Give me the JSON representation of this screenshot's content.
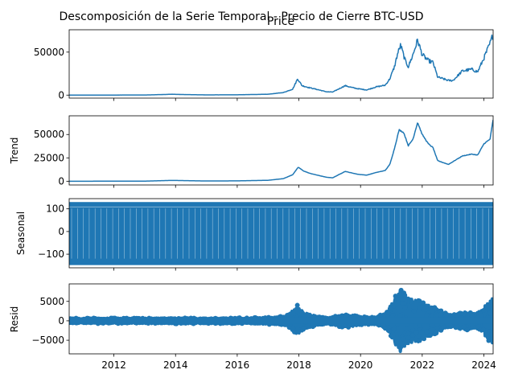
{
  "figure": {
    "suptitle": "Descomposición de la Serie Temporal - Precio de Cierre BTC-USD",
    "line_color": "#1f77b4",
    "x_ticks": [
      "2012",
      "2014",
      "2016",
      "2018",
      "2020",
      "2022",
      "2024"
    ]
  },
  "chart_data": [
    {
      "type": "line",
      "title": "Price",
      "ylabel": "",
      "xlim": [
        2010.55,
        2024.3
      ],
      "ylim": [
        -3500,
        76000
      ],
      "y_ticks": [
        0,
        50000
      ],
      "y_tick_labels": [
        "0",
        "50000"
      ],
      "x": [
        2010.55,
        2013.0,
        2013.9,
        2014.2,
        2015.0,
        2016.0,
        2017.0,
        2017.5,
        2017.8,
        2017.96,
        2018.1,
        2018.3,
        2018.6,
        2018.9,
        2019.1,
        2019.5,
        2019.7,
        2019.9,
        2020.2,
        2020.5,
        2020.8,
        2020.95,
        2021.1,
        2021.2,
        2021.3,
        2021.45,
        2021.55,
        2021.7,
        2021.85,
        2022.0,
        2022.2,
        2022.35,
        2022.5,
        2022.85,
        2023.0,
        2023.3,
        2023.6,
        2023.8,
        2024.0,
        2024.2,
        2024.3
      ],
      "y": [
        0,
        100,
        1000,
        700,
        250,
        400,
        1000,
        3000,
        7000,
        19000,
        11000,
        9000,
        6500,
        3800,
        3600,
        11000,
        9000,
        7500,
        6000,
        9500,
        11500,
        19000,
        33000,
        48000,
        58000,
        40000,
        33000,
        47000,
        64000,
        47000,
        40000,
        38000,
        21000,
        17000,
        17000,
        28000,
        30000,
        27000,
        43000,
        60000,
        71000
      ]
    },
    {
      "type": "line",
      "title": "",
      "ylabel": "Trend",
      "xlim": [
        2010.55,
        2024.3
      ],
      "ylim": [
        -4000,
        70000
      ],
      "y_ticks": [
        0,
        25000,
        50000
      ],
      "y_tick_labels": [
        "0",
        "25000",
        "50000"
      ],
      "x": [
        2010.55,
        2013.0,
        2013.9,
        2014.2,
        2015.0,
        2016.0,
        2017.0,
        2017.5,
        2017.8,
        2017.98,
        2018.15,
        2018.35,
        2018.6,
        2018.9,
        2019.1,
        2019.5,
        2019.7,
        2019.9,
        2020.2,
        2020.5,
        2020.8,
        2020.95,
        2021.1,
        2021.25,
        2021.4,
        2021.55,
        2021.7,
        2021.85,
        2022.0,
        2022.2,
        2022.35,
        2022.5,
        2022.85,
        2023.0,
        2023.3,
        2023.6,
        2023.8,
        2024.0,
        2024.2,
        2024.3
      ],
      "y": [
        0,
        100,
        900,
        700,
        250,
        400,
        1000,
        2800,
        7000,
        15000,
        11000,
        8500,
        6500,
        4200,
        3700,
        10500,
        9000,
        7500,
        6500,
        9300,
        11500,
        18000,
        35000,
        55000,
        52000,
        38000,
        45000,
        63000,
        50000,
        40000,
        36000,
        22000,
        18000,
        21000,
        27000,
        29000,
        28000,
        40000,
        45000,
        66000
      ]
    },
    {
      "type": "line",
      "title": "",
      "ylabel": "Seasonal",
      "xlim": [
        2010.55,
        2024.3
      ],
      "ylim": [
        -160,
        145
      ],
      "y_ticks": [
        -100,
        0,
        100
      ],
      "y_tick_labels": [
        "−100",
        "0",
        "100"
      ],
      "band_range": [
        -148,
        130
      ],
      "period_days": 7
    },
    {
      "type": "scatter",
      "title": "",
      "ylabel": "Resid",
      "xlim": [
        2010.55,
        2024.3
      ],
      "ylim": [
        -8500,
        9500
      ],
      "y_ticks": [
        -5000,
        0,
        5000
      ],
      "y_tick_labels": [
        "−5000",
        "0",
        "5000"
      ],
      "x": [
        2010.55,
        2013.0,
        2014.0,
        2015.0,
        2016.5,
        2017.0,
        2017.6,
        2017.95,
        2018.2,
        2018.6,
        2019.0,
        2019.5,
        2019.9,
        2020.2,
        2020.5,
        2020.9,
        2021.1,
        2021.3,
        2021.5,
        2021.7,
        2021.9,
        2022.1,
        2022.4,
        2022.7,
        2023.0,
        2023.3,
        2023.6,
        2023.9,
        2024.1,
        2024.3
      ],
      "amplitude": [
        700,
        700,
        750,
        700,
        800,
        900,
        1200,
        4000,
        2000,
        1200,
        900,
        1800,
        1300,
        900,
        1000,
        2500,
        6000,
        8000,
        6000,
        5500,
        5500,
        4500,
        3500,
        2000,
        1500,
        2500,
        2000,
        2500,
        4500,
        6000
      ]
    }
  ]
}
